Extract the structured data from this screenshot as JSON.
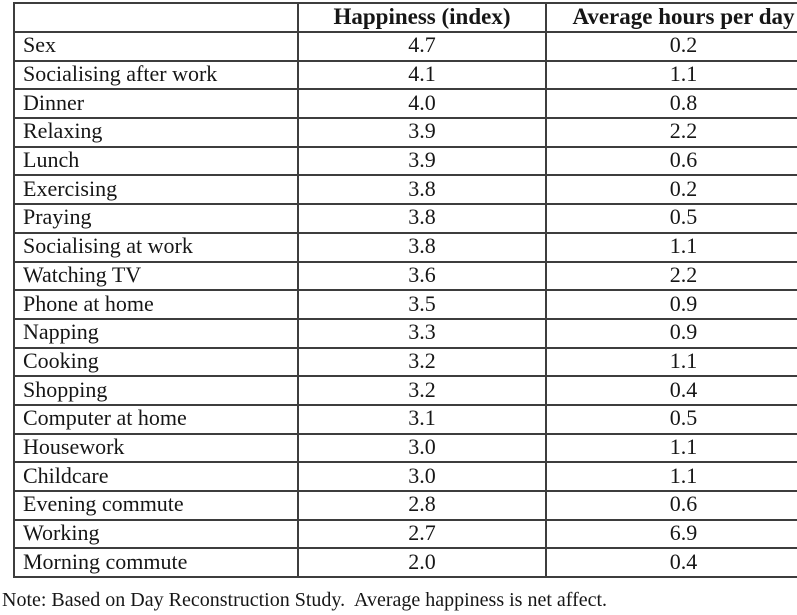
{
  "table": {
    "columns": [
      {
        "label": ""
      },
      {
        "label": "Happiness (index)"
      },
      {
        "label": "Average hours per day"
      }
    ],
    "rows": [
      {
        "activity": "Sex",
        "happiness": "4.7",
        "hours": "0.2"
      },
      {
        "activity": "Socialising after work",
        "happiness": "4.1",
        "hours": "1.1"
      },
      {
        "activity": "Dinner",
        "happiness": "4.0",
        "hours": "0.8"
      },
      {
        "activity": "Relaxing",
        "happiness": "3.9",
        "hours": "2.2"
      },
      {
        "activity": "Lunch",
        "happiness": "3.9",
        "hours": "0.6"
      },
      {
        "activity": "Exercising",
        "happiness": "3.8",
        "hours": "0.2"
      },
      {
        "activity": "Praying",
        "happiness": "3.8",
        "hours": "0.5"
      },
      {
        "activity": "Socialising at work",
        "happiness": "3.8",
        "hours": "1.1"
      },
      {
        "activity": "Watching TV",
        "happiness": "3.6",
        "hours": "2.2"
      },
      {
        "activity": "Phone at home",
        "happiness": "3.5",
        "hours": "0.9"
      },
      {
        "activity": "Napping",
        "happiness": "3.3",
        "hours": "0.9"
      },
      {
        "activity": "Cooking",
        "happiness": "3.2",
        "hours": "1.1"
      },
      {
        "activity": "Shopping",
        "happiness": "3.2",
        "hours": "0.4"
      },
      {
        "activity": "Computer at home",
        "happiness": "3.1",
        "hours": "0.5"
      },
      {
        "activity": "Housework",
        "happiness": "3.0",
        "hours": "1.1"
      },
      {
        "activity": "Childcare",
        "happiness": "3.0",
        "hours": "1.1"
      },
      {
        "activity": "Evening commute",
        "happiness": "2.8",
        "hours": "0.6"
      },
      {
        "activity": "Working",
        "happiness": "2.7",
        "hours": "6.9"
      },
      {
        "activity": "Morning commute",
        "happiness": "2.0",
        "hours": "0.4"
      }
    ]
  },
  "note": "Note: Based on Day Reconstruction Study.  Average happiness is net affect.",
  "colors": {
    "border": "#3d3d3d",
    "text": "#161616",
    "background": "#ffffff"
  }
}
